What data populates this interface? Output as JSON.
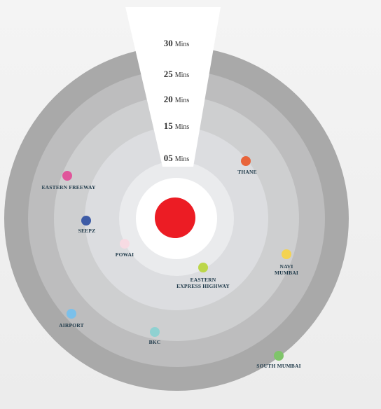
{
  "rings": [
    {
      "minutes": "30",
      "unit": "Mins",
      "color": "#a9a9a9"
    },
    {
      "minutes": "25",
      "unit": "Mins",
      "color": "#bdbdbe"
    },
    {
      "minutes": "20",
      "unit": "Mins",
      "color": "#cecfd0"
    },
    {
      "minutes": "15",
      "unit": "Mins",
      "color": "#dcdde0"
    },
    {
      "minutes": "05",
      "unit": "Mins",
      "color": "#eaebed"
    }
  ],
  "center": {
    "color": "#ec1c24",
    "inner_color": "#ffffff"
  },
  "locations": [
    {
      "id": "thane",
      "lines": [
        "THANE"
      ],
      "color": "#e8643a"
    },
    {
      "id": "eastern-freeway",
      "lines": [
        "EASTERN FREEWAY"
      ],
      "color": "#e0569b"
    },
    {
      "id": "seepz",
      "lines": [
        "SEEPZ"
      ],
      "color": "#3d5ba6"
    },
    {
      "id": "powai",
      "lines": [
        "POWAI"
      ],
      "color": "#f7dbe3"
    },
    {
      "id": "navi-mumbai",
      "lines": [
        "NAVI",
        "MUMBAI"
      ],
      "color": "#f4d352"
    },
    {
      "id": "eastern-express-highway",
      "lines": [
        "EASTERN",
        "EXPRESS HIGHWAY"
      ],
      "color": "#bcd64a"
    },
    {
      "id": "airport",
      "lines": [
        "AIRPORT"
      ],
      "color": "#7bc0ea"
    },
    {
      "id": "bkc",
      "lines": [
        "BKC"
      ],
      "color": "#8fd1d1"
    },
    {
      "id": "south-mumbai",
      "lines": [
        "SOUTH MUMBAI"
      ],
      "color": "#7fc46a"
    }
  ]
}
